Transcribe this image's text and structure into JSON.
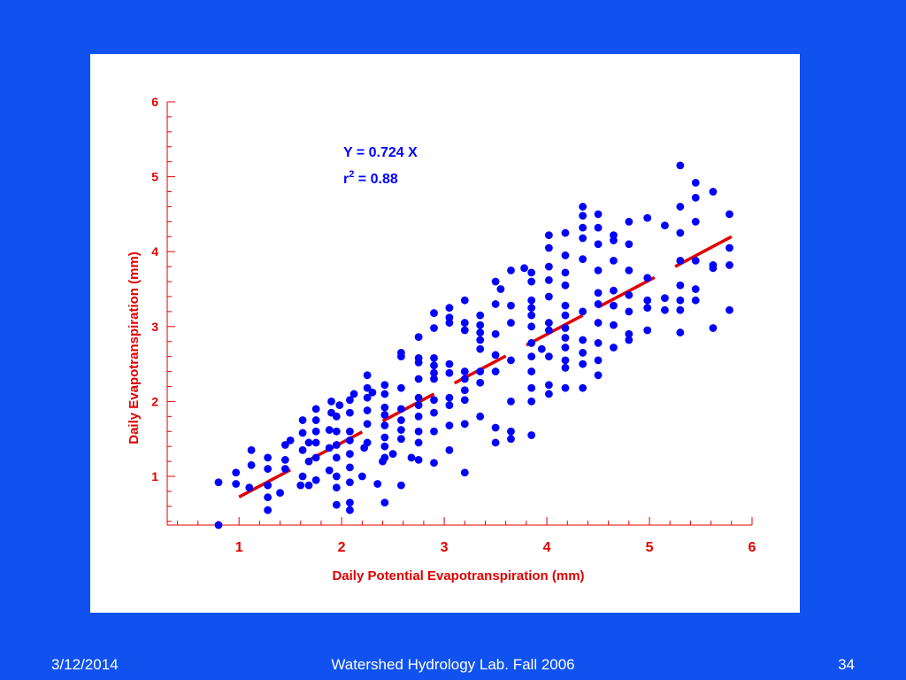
{
  "slide": {
    "date": "3/12/2014",
    "footer": "Watershed Hydrology Lab. Fall 2006",
    "page": "34"
  },
  "colors": {
    "background": "#0f52f0",
    "panel": "#ffffff",
    "axis_text": "#e00000",
    "points": "#0000ff",
    "fit": "#e00000"
  },
  "chart_data": {
    "type": "scatter",
    "xlabel": "Daily Potential Evapotranspiration (mm)",
    "ylabel": "Daily Evapotranspiration (mm)",
    "xlim": [
      0.3,
      6
    ],
    "ylim": [
      0.35,
      6
    ],
    "x_ticks": [
      "1",
      "2",
      "3",
      "4",
      "5",
      "6"
    ],
    "y_ticks": [
      "1",
      "2",
      "3",
      "4",
      "5",
      "6"
    ],
    "annotation": {
      "equation": "Y = 0.724 X",
      "r_prefix": "r",
      "r_sup": "2",
      "r_value": " = 0.88"
    },
    "fit_slope": 0.724,
    "fit_segments": [
      [
        1.0,
        1.5
      ],
      [
        1.7,
        2.2
      ],
      [
        2.4,
        2.9
      ],
      [
        3.1,
        3.6
      ],
      [
        3.8,
        4.35
      ],
      [
        4.5,
        5.05
      ],
      [
        5.25,
        5.8
      ]
    ],
    "points": [
      [
        0.8,
        0.35
      ],
      [
        0.8,
        0.92
      ],
      [
        0.97,
        0.9
      ],
      [
        0.97,
        1.05
      ],
      [
        1.1,
        0.85
      ],
      [
        1.12,
        1.15
      ],
      [
        1.12,
        1.35
      ],
      [
        1.28,
        0.55
      ],
      [
        1.28,
        0.72
      ],
      [
        1.28,
        0.88
      ],
      [
        1.28,
        1.1
      ],
      [
        1.28,
        1.25
      ],
      [
        1.4,
        0.78
      ],
      [
        1.45,
        1.1
      ],
      [
        1.45,
        1.22
      ],
      [
        1.45,
        1.42
      ],
      [
        1.5,
        1.48
      ],
      [
        1.6,
        0.88
      ],
      [
        1.62,
        1.0
      ],
      [
        1.62,
        1.35
      ],
      [
        1.62,
        1.58
      ],
      [
        1.62,
        1.75
      ],
      [
        1.68,
        0.88
      ],
      [
        1.68,
        1.2
      ],
      [
        1.68,
        1.45
      ],
      [
        1.75,
        0.95
      ],
      [
        1.75,
        1.25
      ],
      [
        1.75,
        1.45
      ],
      [
        1.75,
        1.6
      ],
      [
        1.75,
        1.75
      ],
      [
        1.75,
        1.9
      ],
      [
        1.88,
        1.08
      ],
      [
        1.88,
        1.38
      ],
      [
        1.88,
        1.62
      ],
      [
        1.9,
        1.85
      ],
      [
        1.9,
        2.0
      ],
      [
        1.95,
        0.62
      ],
      [
        1.95,
        0.85
      ],
      [
        1.95,
        1.0
      ],
      [
        1.95,
        1.25
      ],
      [
        1.95,
        1.42
      ],
      [
        1.95,
        1.6
      ],
      [
        1.95,
        1.8
      ],
      [
        1.98,
        1.95
      ],
      [
        2.08,
        0.55
      ],
      [
        2.08,
        0.65
      ],
      [
        2.08,
        0.92
      ],
      [
        2.08,
        1.12
      ],
      [
        2.08,
        1.3
      ],
      [
        2.08,
        1.48
      ],
      [
        2.08,
        1.6
      ],
      [
        2.08,
        1.85
      ],
      [
        2.08,
        2.02
      ],
      [
        2.12,
        2.1
      ],
      [
        2.2,
        1.0
      ],
      [
        2.22,
        1.38
      ],
      [
        2.25,
        1.45
      ],
      [
        2.25,
        1.7
      ],
      [
        2.25,
        1.88
      ],
      [
        2.25,
        2.05
      ],
      [
        2.25,
        2.18
      ],
      [
        2.25,
        2.35
      ],
      [
        2.3,
        2.12
      ],
      [
        2.35,
        0.9
      ],
      [
        2.4,
        1.2
      ],
      [
        2.42,
        0.65
      ],
      [
        2.42,
        1.25
      ],
      [
        2.42,
        1.4
      ],
      [
        2.42,
        1.52
      ],
      [
        2.42,
        1.68
      ],
      [
        2.42,
        1.82
      ],
      [
        2.42,
        1.92
      ],
      [
        2.42,
        2.1
      ],
      [
        2.42,
        2.22
      ],
      [
        2.5,
        1.3
      ],
      [
        2.58,
        0.88
      ],
      [
        2.58,
        1.5
      ],
      [
        2.58,
        1.62
      ],
      [
        2.58,
        1.75
      ],
      [
        2.58,
        1.9
      ],
      [
        2.58,
        2.18
      ],
      [
        2.58,
        2.6
      ],
      [
        2.58,
        2.65
      ],
      [
        2.68,
        1.25
      ],
      [
        2.75,
        1.22
      ],
      [
        2.75,
        1.45
      ],
      [
        2.75,
        1.6
      ],
      [
        2.75,
        1.8
      ],
      [
        2.75,
        1.95
      ],
      [
        2.75,
        2.05
      ],
      [
        2.75,
        2.3
      ],
      [
        2.75,
        2.52
      ],
      [
        2.75,
        2.58
      ],
      [
        2.75,
        2.86
      ],
      [
        2.9,
        1.18
      ],
      [
        2.9,
        1.6
      ],
      [
        2.9,
        1.85
      ],
      [
        2.9,
        2.02
      ],
      [
        2.9,
        2.3
      ],
      [
        2.9,
        2.38
      ],
      [
        2.9,
        2.48
      ],
      [
        2.9,
        2.58
      ],
      [
        2.9,
        2.98
      ],
      [
        2.9,
        3.18
      ],
      [
        3.05,
        1.35
      ],
      [
        3.05,
        1.68
      ],
      [
        3.05,
        1.95
      ],
      [
        3.05,
        2.05
      ],
      [
        3.05,
        2.38
      ],
      [
        3.05,
        2.5
      ],
      [
        3.05,
        3.05
      ],
      [
        3.05,
        3.12
      ],
      [
        3.05,
        3.25
      ],
      [
        3.2,
        1.05
      ],
      [
        3.2,
        1.7
      ],
      [
        3.2,
        2.02
      ],
      [
        3.2,
        2.15
      ],
      [
        3.2,
        2.3
      ],
      [
        3.2,
        2.4
      ],
      [
        3.2,
        2.95
      ],
      [
        3.2,
        3.05
      ],
      [
        3.2,
        3.35
      ],
      [
        3.35,
        1.8
      ],
      [
        3.35,
        2.25
      ],
      [
        3.35,
        2.4
      ],
      [
        3.35,
        2.7
      ],
      [
        3.35,
        2.82
      ],
      [
        3.35,
        2.92
      ],
      [
        3.35,
        3.02
      ],
      [
        3.35,
        3.15
      ],
      [
        3.5,
        1.45
      ],
      [
        3.5,
        1.65
      ],
      [
        3.5,
        2.4
      ],
      [
        3.5,
        2.62
      ],
      [
        3.5,
        2.9
      ],
      [
        3.5,
        3.3
      ],
      [
        3.5,
        3.6
      ],
      [
        3.55,
        3.5
      ],
      [
        3.65,
        1.5
      ],
      [
        3.65,
        1.6
      ],
      [
        3.65,
        2.0
      ],
      [
        3.65,
        2.55
      ],
      [
        3.65,
        3.05
      ],
      [
        3.65,
        3.28
      ],
      [
        3.65,
        3.75
      ],
      [
        3.78,
        3.78
      ],
      [
        3.85,
        1.55
      ],
      [
        3.85,
        2.0
      ],
      [
        3.85,
        2.18
      ],
      [
        3.85,
        2.4
      ],
      [
        3.85,
        2.6
      ],
      [
        3.85,
        2.78
      ],
      [
        3.85,
        3.0
      ],
      [
        3.85,
        3.15
      ],
      [
        3.85,
        3.25
      ],
      [
        3.85,
        3.35
      ],
      [
        3.85,
        3.6
      ],
      [
        3.85,
        3.72
      ],
      [
        3.95,
        2.7
      ],
      [
        4.02,
        2.1
      ],
      [
        4.02,
        2.22
      ],
      [
        4.02,
        2.6
      ],
      [
        4.02,
        2.95
      ],
      [
        4.02,
        3.05
      ],
      [
        4.02,
        3.4
      ],
      [
        4.02,
        3.62
      ],
      [
        4.02,
        3.8
      ],
      [
        4.02,
        4.05
      ],
      [
        4.02,
        4.22
      ],
      [
        4.18,
        2.18
      ],
      [
        4.18,
        2.45
      ],
      [
        4.18,
        2.55
      ],
      [
        4.18,
        2.72
      ],
      [
        4.18,
        2.85
      ],
      [
        4.18,
        2.98
      ],
      [
        4.18,
        3.15
      ],
      [
        4.18,
        3.28
      ],
      [
        4.18,
        3.55
      ],
      [
        4.18,
        3.72
      ],
      [
        4.18,
        3.95
      ],
      [
        4.18,
        4.25
      ],
      [
        4.35,
        2.18
      ],
      [
        4.35,
        2.5
      ],
      [
        4.35,
        2.65
      ],
      [
        4.35,
        2.82
      ],
      [
        4.35,
        3.2
      ],
      [
        4.35,
        3.9
      ],
      [
        4.35,
        4.18
      ],
      [
        4.35,
        4.32
      ],
      [
        4.35,
        4.48
      ],
      [
        4.35,
        4.6
      ],
      [
        4.5,
        2.35
      ],
      [
        4.5,
        2.55
      ],
      [
        4.5,
        2.78
      ],
      [
        4.5,
        3.05
      ],
      [
        4.5,
        3.3
      ],
      [
        4.5,
        3.45
      ],
      [
        4.5,
        3.75
      ],
      [
        4.5,
        4.1
      ],
      [
        4.5,
        4.32
      ],
      [
        4.5,
        4.5
      ],
      [
        4.65,
        2.72
      ],
      [
        4.65,
        3.02
      ],
      [
        4.65,
        3.28
      ],
      [
        4.65,
        3.48
      ],
      [
        4.65,
        3.88
      ],
      [
        4.65,
        4.15
      ],
      [
        4.65,
        4.22
      ],
      [
        4.8,
        2.82
      ],
      [
        4.8,
        2.9
      ],
      [
        4.8,
        3.2
      ],
      [
        4.8,
        3.42
      ],
      [
        4.8,
        3.75
      ],
      [
        4.8,
        4.1
      ],
      [
        4.8,
        4.4
      ],
      [
        4.98,
        2.95
      ],
      [
        4.98,
        3.25
      ],
      [
        4.98,
        3.35
      ],
      [
        4.98,
        3.65
      ],
      [
        4.98,
        4.45
      ],
      [
        5.15,
        3.22
      ],
      [
        5.15,
        3.38
      ],
      [
        5.15,
        4.35
      ],
      [
        5.3,
        2.92
      ],
      [
        5.3,
        3.22
      ],
      [
        5.3,
        3.35
      ],
      [
        5.3,
        3.55
      ],
      [
        5.3,
        3.88
      ],
      [
        5.3,
        4.25
      ],
      [
        5.3,
        4.6
      ],
      [
        5.3,
        5.15
      ],
      [
        5.45,
        3.35
      ],
      [
        5.45,
        3.5
      ],
      [
        5.45,
        3.88
      ],
      [
        5.45,
        4.4
      ],
      [
        5.45,
        4.72
      ],
      [
        5.45,
        4.92
      ],
      [
        5.62,
        2.98
      ],
      [
        5.62,
        3.78
      ],
      [
        5.62,
        3.82
      ],
      [
        5.62,
        4.8
      ],
      [
        5.78,
        3.22
      ],
      [
        5.78,
        3.82
      ],
      [
        5.78,
        4.05
      ],
      [
        5.78,
        4.5
      ]
    ]
  }
}
